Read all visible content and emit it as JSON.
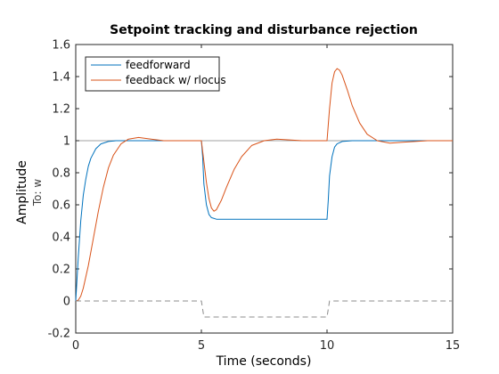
{
  "chart_data": {
    "type": "line",
    "title": "Setpoint tracking and disturbance rejection",
    "xlabel": "Time (seconds)",
    "ylabel": "Amplitude",
    "ysublabel": "To: w",
    "xlim": [
      0,
      15
    ],
    "ylim": [
      -0.2,
      1.6
    ],
    "xticks": [
      "0",
      "5",
      "10",
      "15"
    ],
    "yticks": [
      "-0.2",
      "0",
      "0.2",
      "0.4",
      "0.6",
      "0.8",
      "1",
      "1.2",
      "1.4",
      "1.6"
    ],
    "grid": false,
    "legend": "top-left",
    "reference": {
      "y": 1,
      "color": "#a0a0a0"
    },
    "series": [
      {
        "name": "feedforward",
        "color": "#0072bd",
        "x": [
          0,
          0.1,
          0.2,
          0.3,
          0.4,
          0.5,
          0.6,
          0.8,
          1.0,
          1.3,
          1.6,
          2.0,
          2.5,
          3.0,
          3.6,
          4.5,
          5.0,
          5.05,
          5.1,
          5.2,
          5.3,
          5.4,
          5.6,
          6.0,
          7.0,
          8.0,
          9.0,
          10.0,
          10.05,
          10.1,
          10.2,
          10.3,
          10.4,
          10.6,
          11.0,
          12.0,
          13.0,
          13.8,
          14.5,
          15.0
        ],
        "y": [
          0,
          0.27,
          0.5,
          0.66,
          0.76,
          0.84,
          0.89,
          0.95,
          0.98,
          0.995,
          1.0,
          1.0,
          1.0,
          1.0,
          1.0,
          1.0,
          1.0,
          0.9,
          0.73,
          0.6,
          0.54,
          0.52,
          0.51,
          0.51,
          0.51,
          0.51,
          0.51,
          0.51,
          0.63,
          0.78,
          0.9,
          0.96,
          0.98,
          0.995,
          1.0,
          1.0,
          1.0,
          1.0,
          1.0,
          1.0
        ]
      },
      {
        "name": "feedback w/ rlocus",
        "color": "#d95319",
        "x": [
          0,
          0.1,
          0.2,
          0.3,
          0.5,
          0.7,
          0.9,
          1.1,
          1.3,
          1.5,
          1.8,
          2.1,
          2.5,
          3.0,
          3.5,
          4.0,
          5.0,
          5.1,
          5.2,
          5.3,
          5.4,
          5.5,
          5.6,
          5.8,
          6.0,
          6.3,
          6.6,
          7.0,
          7.5,
          8.0,
          9.0,
          10.0,
          10.1,
          10.2,
          10.3,
          10.4,
          10.5,
          10.6,
          10.8,
          11.0,
          11.3,
          11.6,
          12.0,
          12.5,
          13.0,
          14.0,
          15.0
        ],
        "y": [
          0,
          0.005,
          0.03,
          0.08,
          0.22,
          0.39,
          0.56,
          0.71,
          0.83,
          0.91,
          0.98,
          1.01,
          1.02,
          1.01,
          1.0,
          1.0,
          1.0,
          0.87,
          0.74,
          0.64,
          0.58,
          0.56,
          0.57,
          0.63,
          0.71,
          0.82,
          0.9,
          0.97,
          1.0,
          1.01,
          1.0,
          1.0,
          1.2,
          1.36,
          1.43,
          1.45,
          1.44,
          1.41,
          1.32,
          1.22,
          1.11,
          1.04,
          1.0,
          0.985,
          0.99,
          1.0,
          1.0
        ]
      },
      {
        "name": "",
        "color": "#8c8c8c",
        "dashed": true,
        "x": [
          0,
          5.0,
          5.1,
          10.0,
          10.1,
          15.0
        ],
        "y": [
          0,
          0,
          -0.1,
          -0.1,
          0,
          0
        ]
      }
    ]
  }
}
